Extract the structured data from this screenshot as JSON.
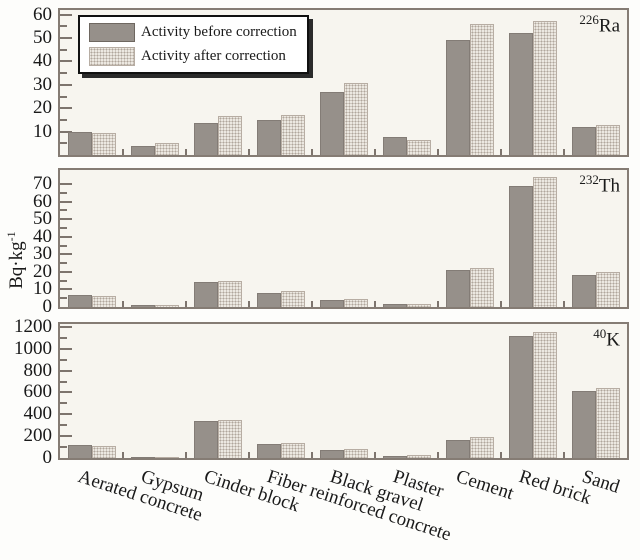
{
  "ylabel": {
    "base": "Bq·kg",
    "exp": "-1"
  },
  "legend": {
    "items": [
      {
        "label": "Activity before correction",
        "style": "solid"
      },
      {
        "label": "Activity after correction",
        "style": "dotted"
      }
    ]
  },
  "categories": [
    "Aerated concrete",
    "Gypsum",
    "Cinder block",
    "Fiber reinforced concrete",
    "Black gravel",
    "Plaster",
    "Cement",
    "Red brick",
    "Sand"
  ],
  "colors": {
    "bar_before": "#96908a",
    "bar_after_bg": "#ece8e1",
    "bar_after_dot": "#b0a69c",
    "frame": "#857c74",
    "plot_bg": "#f7f5ef"
  },
  "chart_data": [
    {
      "type": "bar",
      "isotope": {
        "mass": "226",
        "symbol": "Ra"
      },
      "ylabel": "Bq·kg⁻¹",
      "ylim": [
        0,
        60
      ],
      "yticks": [
        10,
        20,
        30,
        40,
        50,
        60
      ],
      "minor_step": 5,
      "grid": false,
      "legend_position": "upper-left",
      "categories": [
        "Aerated concrete",
        "Gypsum",
        "Cinder block",
        "Fiber reinforced concrete",
        "Black gravel",
        "Plaster",
        "Cement",
        "Red brick",
        "Sand"
      ],
      "series": [
        {
          "name": "Activity before correction",
          "values": [
            10,
            4,
            13.5,
            15,
            27,
            7.5,
            49,
            52,
            12
          ]
        },
        {
          "name": "Activity after correction",
          "values": [
            9.5,
            5,
            16.5,
            17,
            31,
            6.5,
            56,
            57.5,
            13
          ]
        }
      ]
    },
    {
      "type": "bar",
      "isotope": {
        "mass": "232",
        "symbol": "Th"
      },
      "ylim": [
        0,
        70
      ],
      "yticks": [
        0,
        10,
        20,
        30,
        40,
        50,
        60,
        70
      ],
      "minor_step": 5,
      "grid": false,
      "categories": [
        "Aerated concrete",
        "Gypsum",
        "Cinder block",
        "Fiber reinforced concrete",
        "Black gravel",
        "Plaster",
        "Cement",
        "Red brick",
        "Sand"
      ],
      "series": [
        {
          "name": "Activity before correction",
          "values": [
            7,
            1,
            14,
            8,
            4,
            2,
            21,
            69,
            18
          ]
        },
        {
          "name": "Activity after correction",
          "values": [
            6.5,
            1,
            15,
            9,
            4.5,
            2,
            22,
            74,
            20
          ]
        }
      ]
    },
    {
      "type": "bar",
      "isotope": {
        "mass": "40",
        "symbol": "K"
      },
      "ylim": [
        0,
        1200
      ],
      "yticks": [
        0,
        200,
        400,
        600,
        800,
        1000,
        1200
      ],
      "minor_step": 100,
      "grid": false,
      "categories": [
        "Aerated concrete",
        "Gypsum",
        "Cinder block",
        "Fiber reinforced concrete",
        "Black gravel",
        "Plaster",
        "Cement",
        "Red brick",
        "Sand"
      ],
      "series": [
        {
          "name": "Activity before correction",
          "values": [
            115,
            10,
            335,
            125,
            70,
            15,
            165,
            1120,
            610
          ]
        },
        {
          "name": "Activity after correction",
          "values": [
            110,
            10,
            345,
            140,
            85,
            25,
            190,
            1150,
            640
          ]
        }
      ]
    }
  ]
}
